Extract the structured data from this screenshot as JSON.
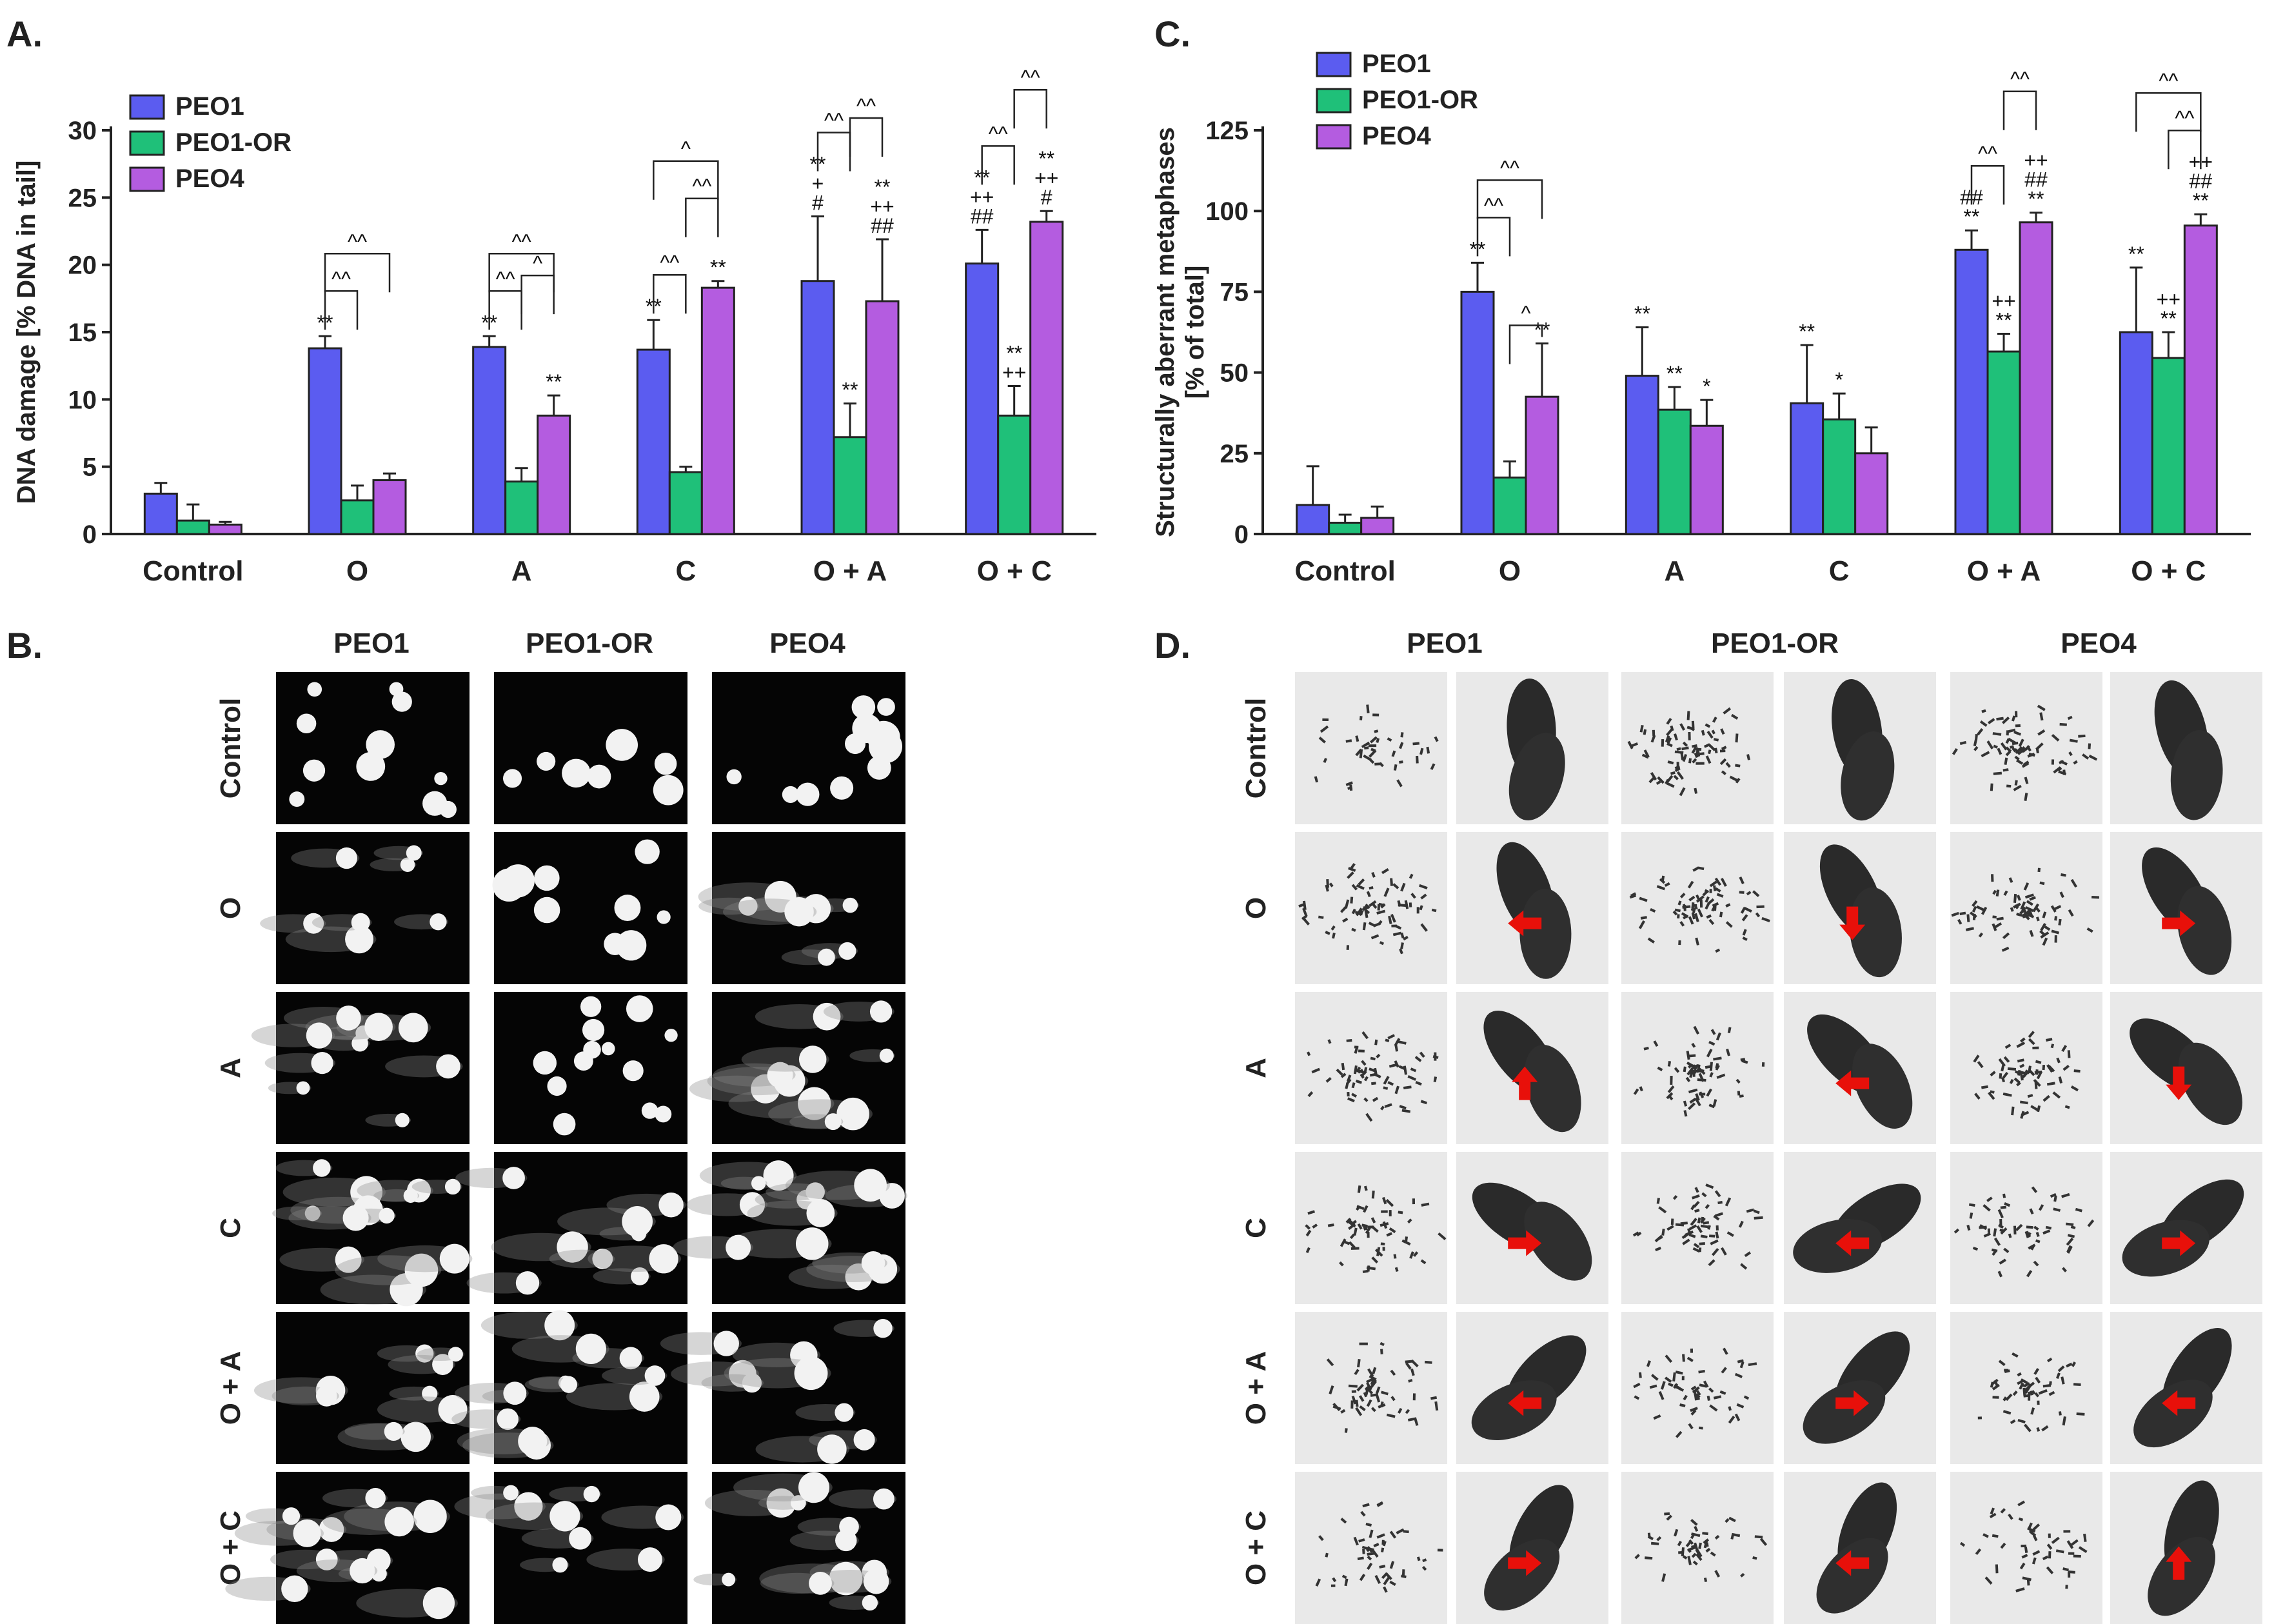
{
  "colors": {
    "PEO1": "#5b5cf0",
    "PEO1-OR": "#1fc079",
    "PEO4": "#b45ce0",
    "arrow": "#e8100a"
  },
  "chart_data": [
    {
      "panel": "A.",
      "type": "bar",
      "title": "",
      "xlabel": "",
      "ylabel": "DNA damage [% DNA in tail]",
      "ylim": [
        0,
        30
      ],
      "yticks": [
        0,
        5,
        10,
        15,
        20,
        25,
        30
      ],
      "legend_position": "top-left",
      "categories": [
        "Control",
        "O",
        "A",
        "C",
        "O + A",
        "O + C"
      ],
      "series": [
        {
          "name": "PEO1",
          "values": [
            3.0,
            13.8,
            13.9,
            13.7,
            18.8,
            20.1
          ],
          "errors": [
            0.8,
            0.9,
            0.8,
            2.2,
            4.8,
            2.5
          ],
          "annotations": [
            "",
            "**",
            "**",
            "**",
            "**\n+\n#",
            "**\n++\n##"
          ]
        },
        {
          "name": "PEO1-OR",
          "values": [
            1.0,
            2.5,
            3.9,
            4.6,
            7.2,
            8.8
          ],
          "errors": [
            1.2,
            1.1,
            1.0,
            0.4,
            2.5,
            2.2
          ],
          "annotations": [
            "",
            "",
            "",
            "",
            "**",
            "**\n++"
          ]
        },
        {
          "name": "PEO4",
          "values": [
            0.7,
            4.0,
            8.8,
            18.3,
            17.3,
            23.2
          ],
          "errors": [
            0.2,
            0.5,
            1.5,
            0.5,
            4.6,
            0.8
          ],
          "annotations": [
            "",
            "",
            "**",
            "**",
            "**\n++\n##",
            "**\n++\n#"
          ]
        }
      ],
      "brackets": [
        {
          "cat": 1,
          "from": 0,
          "to": 1,
          "level": 0,
          "label": "^^"
        },
        {
          "cat": 1,
          "from": 0,
          "to": 2,
          "level": 1,
          "label": "^^"
        },
        {
          "cat": 2,
          "from": 0,
          "to": 1,
          "level": 0,
          "label": "^^"
        },
        {
          "cat": 2,
          "from": 0,
          "to": 2,
          "level": 1,
          "label": "^^"
        },
        {
          "cat": 2,
          "from": 1,
          "to": 2,
          "level": 2,
          "label": "^"
        },
        {
          "cat": 3,
          "from": 0,
          "to": 1,
          "level": 0,
          "label": "^^"
        },
        {
          "cat": 3,
          "from": 1,
          "to": 2,
          "level": 1,
          "label": "^^"
        },
        {
          "cat": 3,
          "from": 0,
          "to": 2,
          "level": 2,
          "label": "^"
        },
        {
          "cat": 4,
          "from": 0,
          "to": 1,
          "level": 0,
          "label": "^^"
        },
        {
          "cat": 4,
          "from": 1,
          "to": 2,
          "level": 1,
          "label": "^^"
        },
        {
          "cat": 5,
          "from": 0,
          "to": 1,
          "level": 0,
          "label": "^^"
        },
        {
          "cat": 5,
          "from": 1,
          "to": 2,
          "level": 1,
          "label": "^^"
        }
      ]
    },
    {
      "panel": "C.",
      "type": "bar",
      "title": "",
      "xlabel": "",
      "ylabel": "Structurally aberrant metaphases",
      "ylabel2": "[% of total]",
      "ylim": [
        0,
        125
      ],
      "yticks": [
        0,
        25,
        50,
        75,
        100,
        125
      ],
      "legend_position": "top-left",
      "categories": [
        "Control",
        "O",
        "A",
        "C",
        "O + A",
        "O + C"
      ],
      "series": [
        {
          "name": "PEO1",
          "values": [
            9.0,
            75.0,
            49.0,
            40.5,
            88.0,
            62.5
          ],
          "errors": [
            12.0,
            9.0,
            15.0,
            18.0,
            6.0,
            20.0
          ],
          "annotations": [
            "",
            "**",
            "**",
            "**",
            "##\n**",
            "**"
          ]
        },
        {
          "name": "PEO1-OR",
          "values": [
            3.5,
            17.5,
            38.5,
            35.5,
            56.5,
            54.5
          ],
          "errors": [
            2.5,
            5.0,
            7.0,
            8.0,
            5.5,
            8.0
          ],
          "annotations": [
            "",
            "",
            "**",
            "*",
            "++\n**",
            "++\n**"
          ]
        },
        {
          "name": "PEO4",
          "values": [
            5.0,
            42.5,
            33.5,
            25.0,
            96.5,
            95.5
          ],
          "errors": [
            3.5,
            16.5,
            8.0,
            8.0,
            3.0,
            3.5
          ],
          "annotations": [
            "",
            "**",
            "*",
            "",
            "++\n##\n**",
            "++\n##\n**"
          ]
        }
      ],
      "brackets": [
        {
          "cat": 1,
          "from": 0,
          "to": 1,
          "level": 0,
          "label": "^^"
        },
        {
          "cat": 1,
          "from": 0,
          "to": 2,
          "level": 1,
          "label": "^^"
        },
        {
          "cat": 1,
          "from": 1,
          "to": 2,
          "level": -1,
          "label": "^"
        },
        {
          "cat": 4,
          "from": 0,
          "to": 1,
          "level": 0,
          "label": "^^"
        },
        {
          "cat": 4,
          "from": 1,
          "to": 2,
          "level": 1,
          "label": "^^"
        },
        {
          "cat": 5,
          "from": 1,
          "to": 2,
          "level": 0,
          "label": "^^"
        },
        {
          "cat": 5,
          "from": 0,
          "to": 2,
          "level": 1,
          "label": "^^"
        }
      ]
    }
  ],
  "panels": {
    "B": {
      "letter": "B.",
      "columns": [
        "PEO1",
        "PEO1-OR",
        "PEO4"
      ],
      "rows": [
        "Control",
        "O",
        "A",
        "C",
        "O + A",
        "O + C"
      ]
    },
    "D": {
      "letter": "D.",
      "columns": [
        "PEO1",
        "PEO1-OR",
        "PEO4"
      ],
      "rows": [
        "Control",
        "O",
        "A",
        "C",
        "O + A",
        "O + C"
      ],
      "arrows": [
        {
          "row": 1,
          "col": 0,
          "dir": "left"
        },
        {
          "row": 1,
          "col": 1,
          "dir": "down"
        },
        {
          "row": 1,
          "col": 2,
          "dir": "right"
        },
        {
          "row": 2,
          "col": 0,
          "dir": "up"
        },
        {
          "row": 2,
          "col": 1,
          "dir": "left"
        },
        {
          "row": 2,
          "col": 2,
          "dir": "down"
        },
        {
          "row": 3,
          "col": 0,
          "dir": "right"
        },
        {
          "row": 3,
          "col": 1,
          "dir": "left"
        },
        {
          "row": 3,
          "col": 2,
          "dir": "right"
        },
        {
          "row": 4,
          "col": 0,
          "dir": "left"
        },
        {
          "row": 4,
          "col": 1,
          "dir": "right"
        },
        {
          "row": 4,
          "col": 2,
          "dir": "left"
        },
        {
          "row": 5,
          "col": 0,
          "dir": "right"
        },
        {
          "row": 5,
          "col": 1,
          "dir": "left"
        },
        {
          "row": 5,
          "col": 2,
          "dir": "up"
        }
      ]
    }
  }
}
